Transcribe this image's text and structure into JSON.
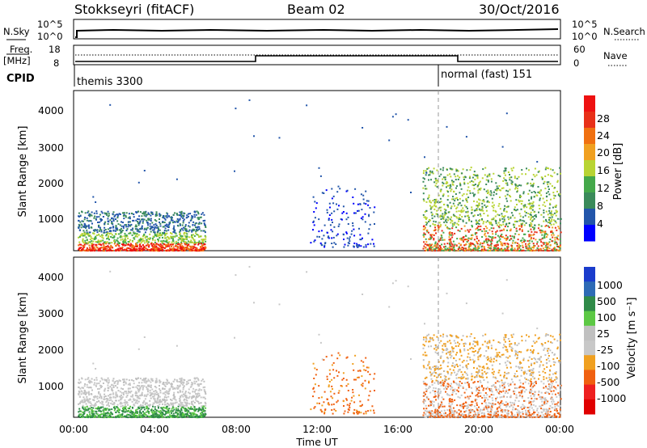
{
  "header": {
    "station": "Stokkseyri (fitACF)",
    "beam": "Beam 02",
    "date": "30/Oct/2016"
  },
  "panels": {
    "noise": {
      "left_label": "N.Sky",
      "left_ticks": [
        "10^5",
        "10^0"
      ],
      "right_label": "N.Search",
      "right_ticks": [
        "10^5",
        "10^0"
      ]
    },
    "freq": {
      "left_label_1": "Freq.",
      "left_label_2": "[MHz]",
      "left_ticks": [
        "18",
        "8"
      ],
      "right_label": "Nave",
      "right_ticks": [
        "60",
        "0"
      ],
      "cpid_label": "CPID",
      "cpid_1": "themis 3300",
      "cpid_2": "normal (fast) 151"
    },
    "power": {
      "ylabel": "Slant Range [km]",
      "yticks": [
        "4000",
        "3000",
        "2000",
        "1000"
      ],
      "cbar_label": "Power [dB]",
      "cbar_ticks": [
        "28",
        "24",
        "20",
        "16",
        "12",
        "8",
        "4"
      ]
    },
    "velocity": {
      "ylabel": "Slant Range [km]",
      "yticks": [
        "4000",
        "3000",
        "2000",
        "1000"
      ],
      "cbar_label": "Velocity [m s⁻¹]",
      "cbar_ticks": [
        "1000",
        "500",
        "100",
        "25",
        "-25",
        "-100",
        "-500",
        "-1000"
      ]
    },
    "xaxis": {
      "ticks": [
        "00:00",
        "04:00",
        "08:00",
        "12:00",
        "16:00",
        "20:00",
        "00:00"
      ],
      "label": "Time UT"
    }
  },
  "colors": {
    "power_scale": [
      "#0000ff",
      "#2255aa",
      "#3a8a5a",
      "#44a84a",
      "#b8d433",
      "#f0a020",
      "#f07010",
      "#e83018",
      "#ee1111"
    ],
    "velocity_scale": [
      "#1a3ccc",
      "#2d6ab5",
      "#2f8a48",
      "#5cc844",
      "#c0c0c0",
      "#c8c8c8",
      "#f0a020",
      "#f06010",
      "#ee2020",
      "#e00000"
    ]
  },
  "chart_data": {
    "type": "heatmap",
    "title": "Stokkseyri (fitACF)",
    "x_range_hours": [
      0,
      24
    ],
    "y_range_km": [
      180,
      4600
    ],
    "transitions": {
      "frequency_step_up_hour": 9.0,
      "frequency_step_down_hour": 18.9,
      "cpid_change_hour": 18.0
    },
    "scatter_regions": [
      {
        "name": "early",
        "t": [
          0.2,
          6.5
        ],
        "r": [
          200,
          1300
        ]
      },
      {
        "name": "midday",
        "t": [
          11.6,
          14.8
        ],
        "r": [
          300,
          2000
        ]
      },
      {
        "name": "evening",
        "t": [
          17.2,
          24.0
        ],
        "r": [
          200,
          2500
        ]
      }
    ]
  }
}
